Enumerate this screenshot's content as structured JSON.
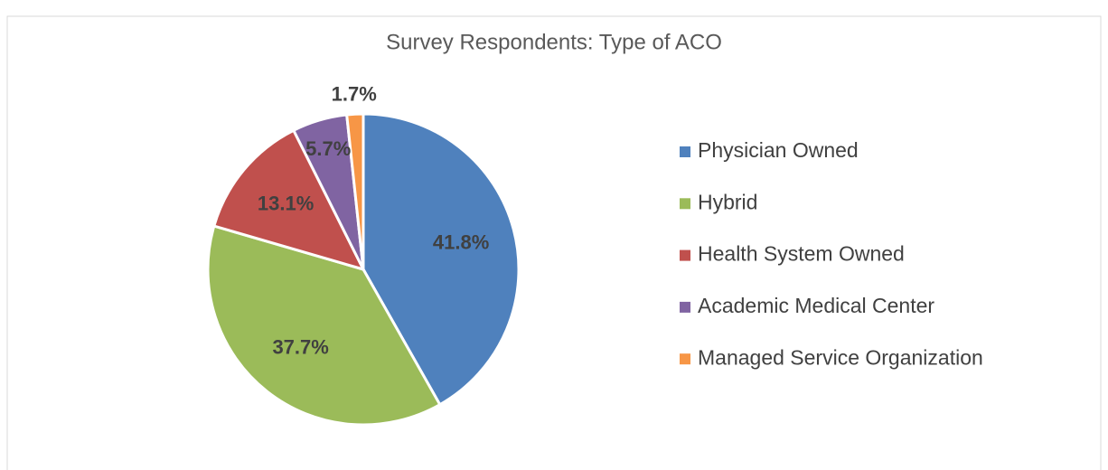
{
  "chart_data": {
    "type": "pie",
    "title": "Survey Respondents: Type of ACO",
    "categories": [
      "Physician Owned",
      "Hybrid",
      "Health System Owned",
      "Academic Medical Center",
      "Managed Service Organization"
    ],
    "values": [
      41.8,
      37.7,
      13.1,
      5.7,
      1.7
    ],
    "value_labels": [
      "41.8%",
      "37.7%",
      "13.1%",
      "5.7%",
      "1.7%"
    ],
    "colors": [
      "#4f81bd",
      "#9bbb59",
      "#c0504d",
      "#8064a2",
      "#f79646"
    ],
    "legend": "right"
  }
}
